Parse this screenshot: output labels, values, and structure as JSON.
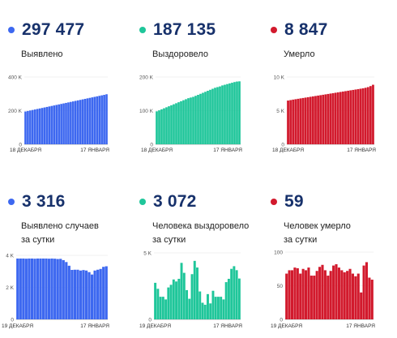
{
  "colors": {
    "blue": "#3d68f0",
    "teal": "#1fc69a",
    "red": "#d21a2d",
    "number": "#17316b"
  },
  "panels": [
    {
      "value": "297 477",
      "label": "Выявлено",
      "label2": "",
      "color": "#3d68f0"
    },
    {
      "value": "187 135",
      "label": "Выздоровело",
      "label2": "",
      "color": "#1fc69a"
    },
    {
      "value": "8 847",
      "label": "Умерло",
      "label2": "",
      "color": "#d21a2d"
    },
    {
      "value": "3 316",
      "label": "Выявлено случаев",
      "label2": "за сутки",
      "color": "#3d68f0"
    },
    {
      "value": "3 072",
      "label": "Человека выздоровело",
      "label2": "за сутки",
      "color": "#1fc69a"
    },
    {
      "value": "59",
      "label": "Человек умерло",
      "label2": "за сутки",
      "color": "#d21a2d"
    }
  ],
  "chart_data": [
    {
      "type": "bar",
      "series": [
        {
          "values": [
            195000,
            198000,
            201000,
            204000,
            207000,
            210000,
            213000,
            216000,
            219000,
            222000,
            225000,
            228000,
            231000,
            234000,
            237000,
            240000,
            243000,
            246000,
            249000,
            252000,
            255000,
            258000,
            261000,
            264000,
            267000,
            270000,
            273000,
            276000,
            279000,
            282000,
            285000,
            288000,
            291000,
            294000,
            297477
          ]
        }
      ],
      "yticks": [
        "0",
        "200 K",
        "400 K"
      ],
      "ylim": [
        0,
        400000
      ],
      "xtick_labels": [
        "18 ДЕКАБРЯ",
        "17 ЯНВАРЯ"
      ]
    },
    {
      "type": "bar",
      "series": [
        {
          "values": [
            98000,
            101000,
            104000,
            107000,
            110000,
            113000,
            116000,
            119000,
            122000,
            125000,
            128000,
            131000,
            134000,
            137000,
            139000,
            141000,
            144000,
            147000,
            150000,
            153000,
            156000,
            159000,
            162000,
            165000,
            168000,
            170000,
            172000,
            175000,
            177000,
            179000,
            181000,
            183000,
            185000,
            186500,
            187135
          ]
        }
      ],
      "yticks": [
        "0",
        "100 K",
        "200 K"
      ],
      "ylim": [
        0,
        200000
      ],
      "xtick_labels": [
        "18 ДЕКАБРЯ",
        "17 ЯНВАРЯ"
      ]
    },
    {
      "type": "bar",
      "series": [
        {
          "values": [
            6500,
            6570,
            6640,
            6700,
            6760,
            6820,
            6880,
            6940,
            7000,
            7060,
            7120,
            7180,
            7240,
            7300,
            7360,
            7420,
            7480,
            7540,
            7600,
            7660,
            7720,
            7780,
            7840,
            7900,
            7960,
            8020,
            8080,
            8140,
            8200,
            8260,
            8320,
            8400,
            8500,
            8650,
            8847
          ]
        }
      ],
      "yticks": [
        "0",
        "5 K",
        "10 K"
      ],
      "ylim": [
        0,
        10000
      ],
      "xtick_labels": [
        "18 ДЕКАБРЯ",
        "17 ЯНВАРЯ"
      ]
    },
    {
      "type": "bar",
      "series": [
        {
          "values": [
            3800,
            3800,
            3800,
            3790,
            3800,
            3800,
            3790,
            3800,
            3800,
            3800,
            3800,
            3790,
            3800,
            3790,
            3770,
            3780,
            3700,
            3580,
            3350,
            3090,
            3100,
            3100,
            3050,
            3080,
            3050,
            2950,
            2800,
            3050,
            3100,
            3150,
            3280,
            3316
          ]
        }
      ],
      "yticks": [
        "0",
        "2 K",
        "4 K"
      ],
      "ylim": [
        0,
        4000
      ],
      "xtick_labels": [
        "19 ДЕКАБРЯ",
        "17 ЯНВАРЯ"
      ]
    },
    {
      "type": "bar",
      "series": [
        {
          "values": [
            2750,
            2300,
            1700,
            1700,
            1500,
            2400,
            2600,
            3000,
            2850,
            3050,
            4250,
            3500,
            2200,
            1550,
            3400,
            4400,
            3900,
            2100,
            1250,
            1100,
            1900,
            1200,
            2150,
            1700,
            1700,
            1700,
            1500,
            2800,
            3050,
            3800,
            4000,
            3700,
            3072
          ]
        }
      ],
      "yticks": [
        "0",
        "5 K"
      ],
      "ylim": [
        0,
        5000
      ],
      "xtick_labels": [
        "19 ДЕКАБРЯ",
        "17 ЯНВАРЯ"
      ]
    },
    {
      "type": "bar",
      "series": [
        {
          "values": [
            68,
            73,
            73,
            77,
            76,
            68,
            75,
            73,
            77,
            65,
            65,
            72,
            78,
            81,
            73,
            65,
            72,
            80,
            82,
            77,
            73,
            70,
            72,
            75,
            68,
            64,
            68,
            40,
            80,
            85,
            62,
            59
          ]
        }
      ],
      "yticks": [
        "0",
        "50",
        "100"
      ],
      "ylim": [
        0,
        100
      ],
      "xtick_labels": [
        "19 ДЕКАБРЯ",
        "17 ЯНВАРЯ"
      ]
    }
  ]
}
